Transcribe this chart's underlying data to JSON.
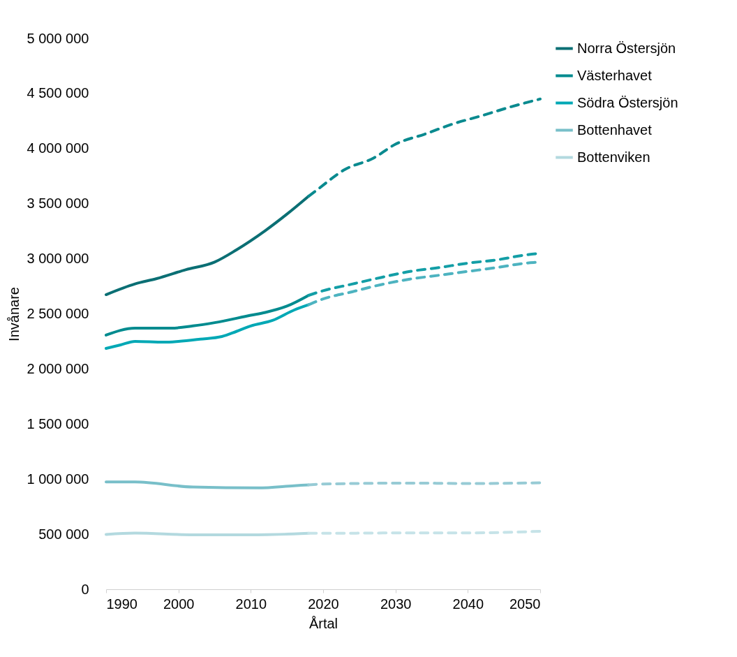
{
  "chart_data": {
    "type": "line",
    "xlabel": "Årtal",
    "ylabel": "Invånare",
    "xlim": [
      1990,
      2050
    ],
    "xticks": [
      1990,
      2000,
      2010,
      2020,
      2030,
      2040,
      2050
    ],
    "ylim": [
      0,
      5000000
    ],
    "yticks": [
      {
        "value": 0,
        "label": "0"
      },
      {
        "value": 500000,
        "label": "500 000"
      },
      {
        "value": 1000000,
        "label": "1 000 000"
      },
      {
        "value": 1500000,
        "label": "1 500 000"
      },
      {
        "value": 2000000,
        "label": "2 000 000"
      },
      {
        "value": 2500000,
        "label": "2 500 000"
      },
      {
        "value": 3000000,
        "label": "3 000 000"
      },
      {
        "value": 3500000,
        "label": "3 500 000"
      },
      {
        "value": 4000000,
        "label": "4 000 000"
      },
      {
        "value": 4500000,
        "label": "4 500 000"
      },
      {
        "value": 5000000,
        "label": "5 000 000"
      }
    ],
    "grid": false,
    "legend": "right",
    "marker": "none",
    "series": [
      {
        "name": "Norra Östersjön",
        "color": "#0b6f74",
        "line_style": "solid",
        "x": [
          1990,
          1994,
          1997,
          2001,
          2005,
          2008,
          2012,
          2015,
          2018
        ],
        "values": [
          2674000,
          2772000,
          2820000,
          2900000,
          2970000,
          3080000,
          3255000,
          3405000,
          3568000
        ]
      },
      {
        "name": "Västerhavet",
        "color": "#008b8f",
        "line_style": "solid",
        "x": [
          1990,
          1994,
          1999,
          2002,
          2005,
          2010,
          2012,
          2015,
          2018
        ],
        "values": [
          2307000,
          2370000,
          2370000,
          2390000,
          2420000,
          2487000,
          2513000,
          2570000,
          2668000
        ]
      },
      {
        "name": "Södra Östersjön",
        "color": "#00a8b5",
        "line_style": "solid",
        "x": [
          1990,
          1992,
          1994,
          1998,
          2000,
          2003,
          2006,
          2008,
          2010,
          2013,
          2016,
          2018
        ],
        "values": [
          2186000,
          2218000,
          2250000,
          2243000,
          2250000,
          2270000,
          2294000,
          2340000,
          2390000,
          2440000,
          2535000,
          2583000
        ]
      },
      {
        "name": "Bottenhavet",
        "color": "#78bfc9",
        "line_style": "solid",
        "x": [
          1990,
          1994,
          2002,
          2011,
          2016,
          2018
        ],
        "values": [
          974000,
          974000,
          928000,
          920000,
          940000,
          948000
        ]
      },
      {
        "name": "Bottenviken",
        "color": "#b3d9df",
        "line_style": "solid",
        "x": [
          1990,
          1994,
          2002,
          2011,
          2018
        ],
        "values": [
          498000,
          510000,
          495000,
          495000,
          508000
        ]
      },
      {
        "color": "#0a8a8f",
        "line_style": "dashed",
        "x": [
          2018,
          2019,
          2023,
          2027,
          2030,
          2034,
          2038,
          2042,
          2046,
          2050
        ],
        "values": [
          3568000,
          3617000,
          3810000,
          3915000,
          4040000,
          4130000,
          4225000,
          4300000,
          4380000,
          4450000
        ]
      },
      {
        "color": "#139ea6",
        "line_style": "dashed",
        "x": [
          2018,
          2020,
          2024,
          2028,
          2032,
          2036,
          2040,
          2044,
          2048,
          2050
        ],
        "values": [
          2668000,
          2710000,
          2770000,
          2830000,
          2885000,
          2920000,
          2960000,
          2990000,
          3035000,
          3050000
        ]
      },
      {
        "color": "#4db3c0",
        "line_style": "dashed",
        "x": [
          2018,
          2020,
          2024,
          2028,
          2032,
          2036,
          2040,
          2044,
          2048,
          2050
        ],
        "values": [
          2583000,
          2635000,
          2700000,
          2765000,
          2815000,
          2850000,
          2885000,
          2920000,
          2960000,
          2970000
        ]
      },
      {
        "color": "#97cbd5",
        "line_style": "dashed",
        "x": [
          2018,
          2020,
          2032,
          2040,
          2050
        ],
        "values": [
          948000,
          955000,
          964000,
          960000,
          966000
        ]
      },
      {
        "color": "#c6e3e8",
        "line_style": "dashed",
        "x": [
          2018,
          2020,
          2032,
          2040,
          2050
        ],
        "values": [
          508000,
          508000,
          512000,
          512000,
          526000
        ]
      }
    ]
  }
}
